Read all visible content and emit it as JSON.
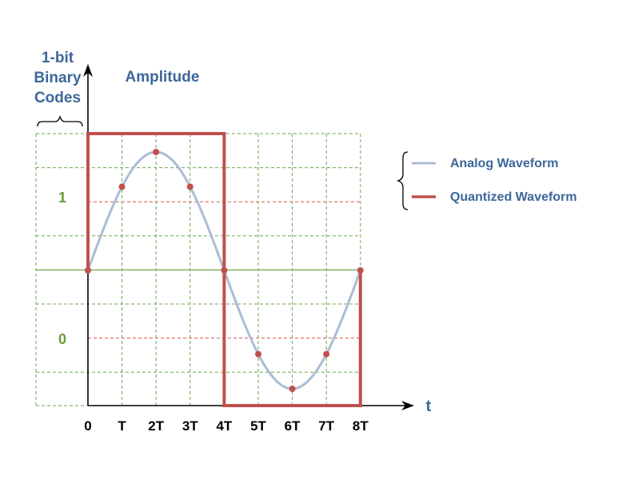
{
  "labels": {
    "codes_title": [
      "1-bit",
      "Binary",
      "Codes"
    ],
    "amplitude": "Amplitude",
    "time_axis": "t",
    "code_one": "1",
    "code_zero": "0"
  },
  "ticks": [
    "0",
    "T",
    "2T",
    "3T",
    "4T",
    "5T",
    "6T",
    "7T",
    "8T"
  ],
  "legend": [
    {
      "label": "Analog Waveform",
      "color": "#a9bdd6"
    },
    {
      "label": "Quantized Waveform",
      "color": "#c0504d"
    }
  ],
  "colors": {
    "text_blue": "#3d6799",
    "code_green": "#6a9a3a",
    "grid_green": "#6aa84f",
    "threshold_red": "#d9534f",
    "sample_dot": "#c0504d",
    "axis": "#000000"
  },
  "waveform": {
    "analog": "sine, one period over 0 to 8T",
    "samples": [
      0,
      0.707,
      1,
      0.707,
      0,
      -0.707,
      -1,
      -0.707,
      0
    ],
    "quantized_codes": [
      1,
      1,
      1,
      1,
      0,
      0,
      0,
      0
    ]
  }
}
